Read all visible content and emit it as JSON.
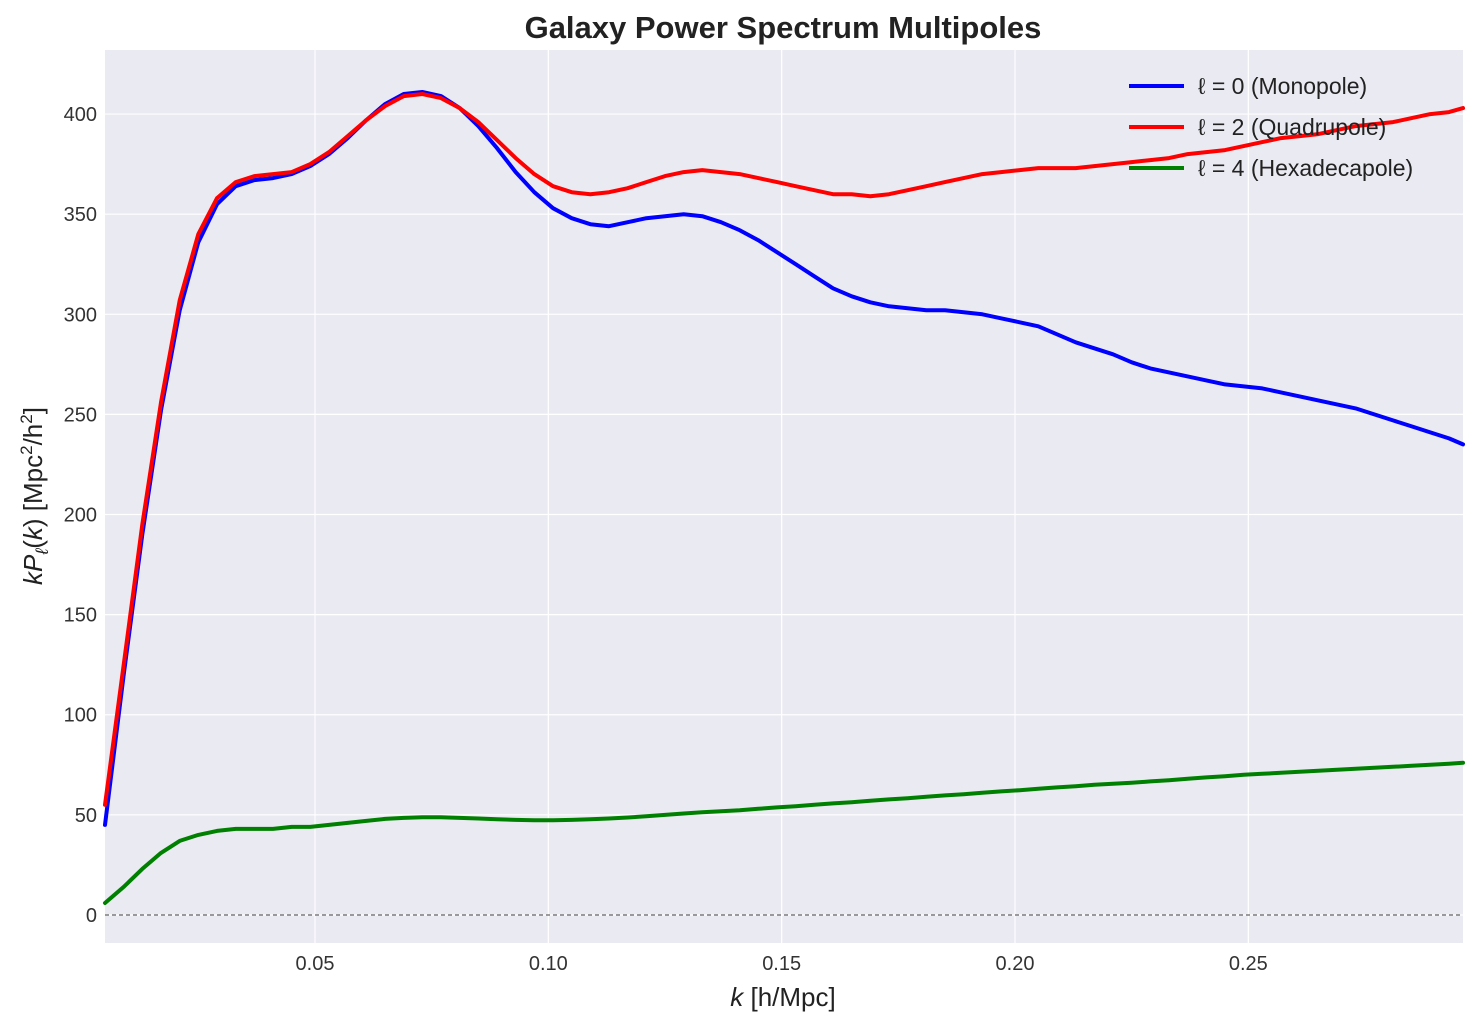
{
  "chart_data": {
    "type": "line",
    "title": "Galaxy Power Spectrum Multipoles",
    "xlabel": "k [h/Mpc]",
    "ylabel": "kPℓ(k) [Mpc²/h²]",
    "xlim": [
      0.005,
      0.296
    ],
    "ylim": [
      -14,
      432
    ],
    "xticks": [
      "0.05",
      "0.10",
      "0.15",
      "0.20",
      "0.25"
    ],
    "yticks": [
      "0",
      "50",
      "100",
      "150",
      "200",
      "250",
      "300",
      "350",
      "400"
    ],
    "grid": true,
    "legend_position": "top-right",
    "reference_line": {
      "y": 0,
      "style": "dashed",
      "color": "#666666"
    },
    "x": [
      0.005,
      0.009,
      0.013,
      0.017,
      0.021,
      0.025,
      0.029,
      0.033,
      0.037,
      0.041,
      0.045,
      0.049,
      0.053,
      0.057,
      0.061,
      0.065,
      0.069,
      0.073,
      0.077,
      0.081,
      0.085,
      0.089,
      0.093,
      0.097,
      0.101,
      0.105,
      0.109,
      0.113,
      0.117,
      0.121,
      0.125,
      0.129,
      0.133,
      0.137,
      0.141,
      0.145,
      0.149,
      0.153,
      0.157,
      0.161,
      0.165,
      0.169,
      0.173,
      0.177,
      0.181,
      0.185,
      0.189,
      0.193,
      0.197,
      0.201,
      0.205,
      0.209,
      0.213,
      0.217,
      0.221,
      0.225,
      0.229,
      0.233,
      0.237,
      0.241,
      0.245,
      0.249,
      0.253,
      0.257,
      0.261,
      0.265,
      0.269,
      0.273,
      0.277,
      0.281,
      0.285,
      0.289,
      0.293,
      0.296
    ],
    "series": [
      {
        "name": "ℓ = 0 (Monopole)",
        "color": "#0000ff",
        "values": [
          45,
          120,
          190,
          252,
          302,
          336,
          355,
          364,
          367,
          368,
          370,
          374,
          380,
          388,
          397,
          405,
          410,
          411,
          409,
          403,
          394,
          383,
          371,
          361,
          353,
          348,
          345,
          344,
          346,
          348,
          349,
          350,
          349,
          346,
          342,
          337,
          331,
          325,
          319,
          313,
          309,
          306,
          304,
          303,
          302,
          302,
          301,
          300,
          298,
          296,
          294,
          290,
          286,
          283,
          280,
          276,
          273,
          271,
          269,
          267,
          265,
          264,
          263,
          261,
          259,
          257,
          255,
          253,
          250,
          247,
          244,
          241,
          238,
          235
        ]
      },
      {
        "name": "ℓ = 2 (Quadrupole)",
        "color": "#ff0000",
        "values": [
          55,
          125,
          195,
          256,
          307,
          340,
          358,
          366,
          369,
          370,
          371,
          375,
          381,
          389,
          397,
          404,
          409,
          410,
          408,
          403,
          396,
          387,
          378,
          370,
          364,
          361,
          360,
          361,
          363,
          366,
          369,
          371,
          372,
          371,
          370,
          368,
          366,
          364,
          362,
          360,
          360,
          359,
          360,
          362,
          364,
          366,
          368,
          370,
          371,
          372,
          373,
          373,
          373,
          374,
          375,
          376,
          377,
          378,
          380,
          381,
          382,
          384,
          386,
          388,
          389,
          390,
          392,
          394,
          395,
          396,
          398,
          400,
          401,
          403
        ]
      },
      {
        "name": "ℓ = 4 (Hexadecapole)",
        "color": "#008000",
        "values": [
          6,
          14,
          23,
          31,
          37,
          40,
          42,
          43,
          43,
          43,
          44,
          44,
          45,
          46,
          47,
          48,
          48.5,
          48.8,
          48.8,
          48.5,
          48.2,
          47.8,
          47.5,
          47.3,
          47.3,
          47.5,
          47.8,
          48.2,
          48.7,
          49.3,
          50,
          50.7,
          51.3,
          51.8,
          52.3,
          53,
          53.7,
          54.3,
          55,
          55.7,
          56.3,
          57,
          57.7,
          58.3,
          59,
          59.7,
          60.3,
          61,
          61.7,
          62.3,
          63,
          63.7,
          64.3,
          65,
          65.5,
          66,
          66.7,
          67.3,
          68,
          68.7,
          69.3,
          70,
          70.5,
          71,
          71.5,
          72,
          72.5,
          73,
          73.5,
          74,
          74.5,
          75,
          75.5,
          76
        ]
      }
    ]
  }
}
